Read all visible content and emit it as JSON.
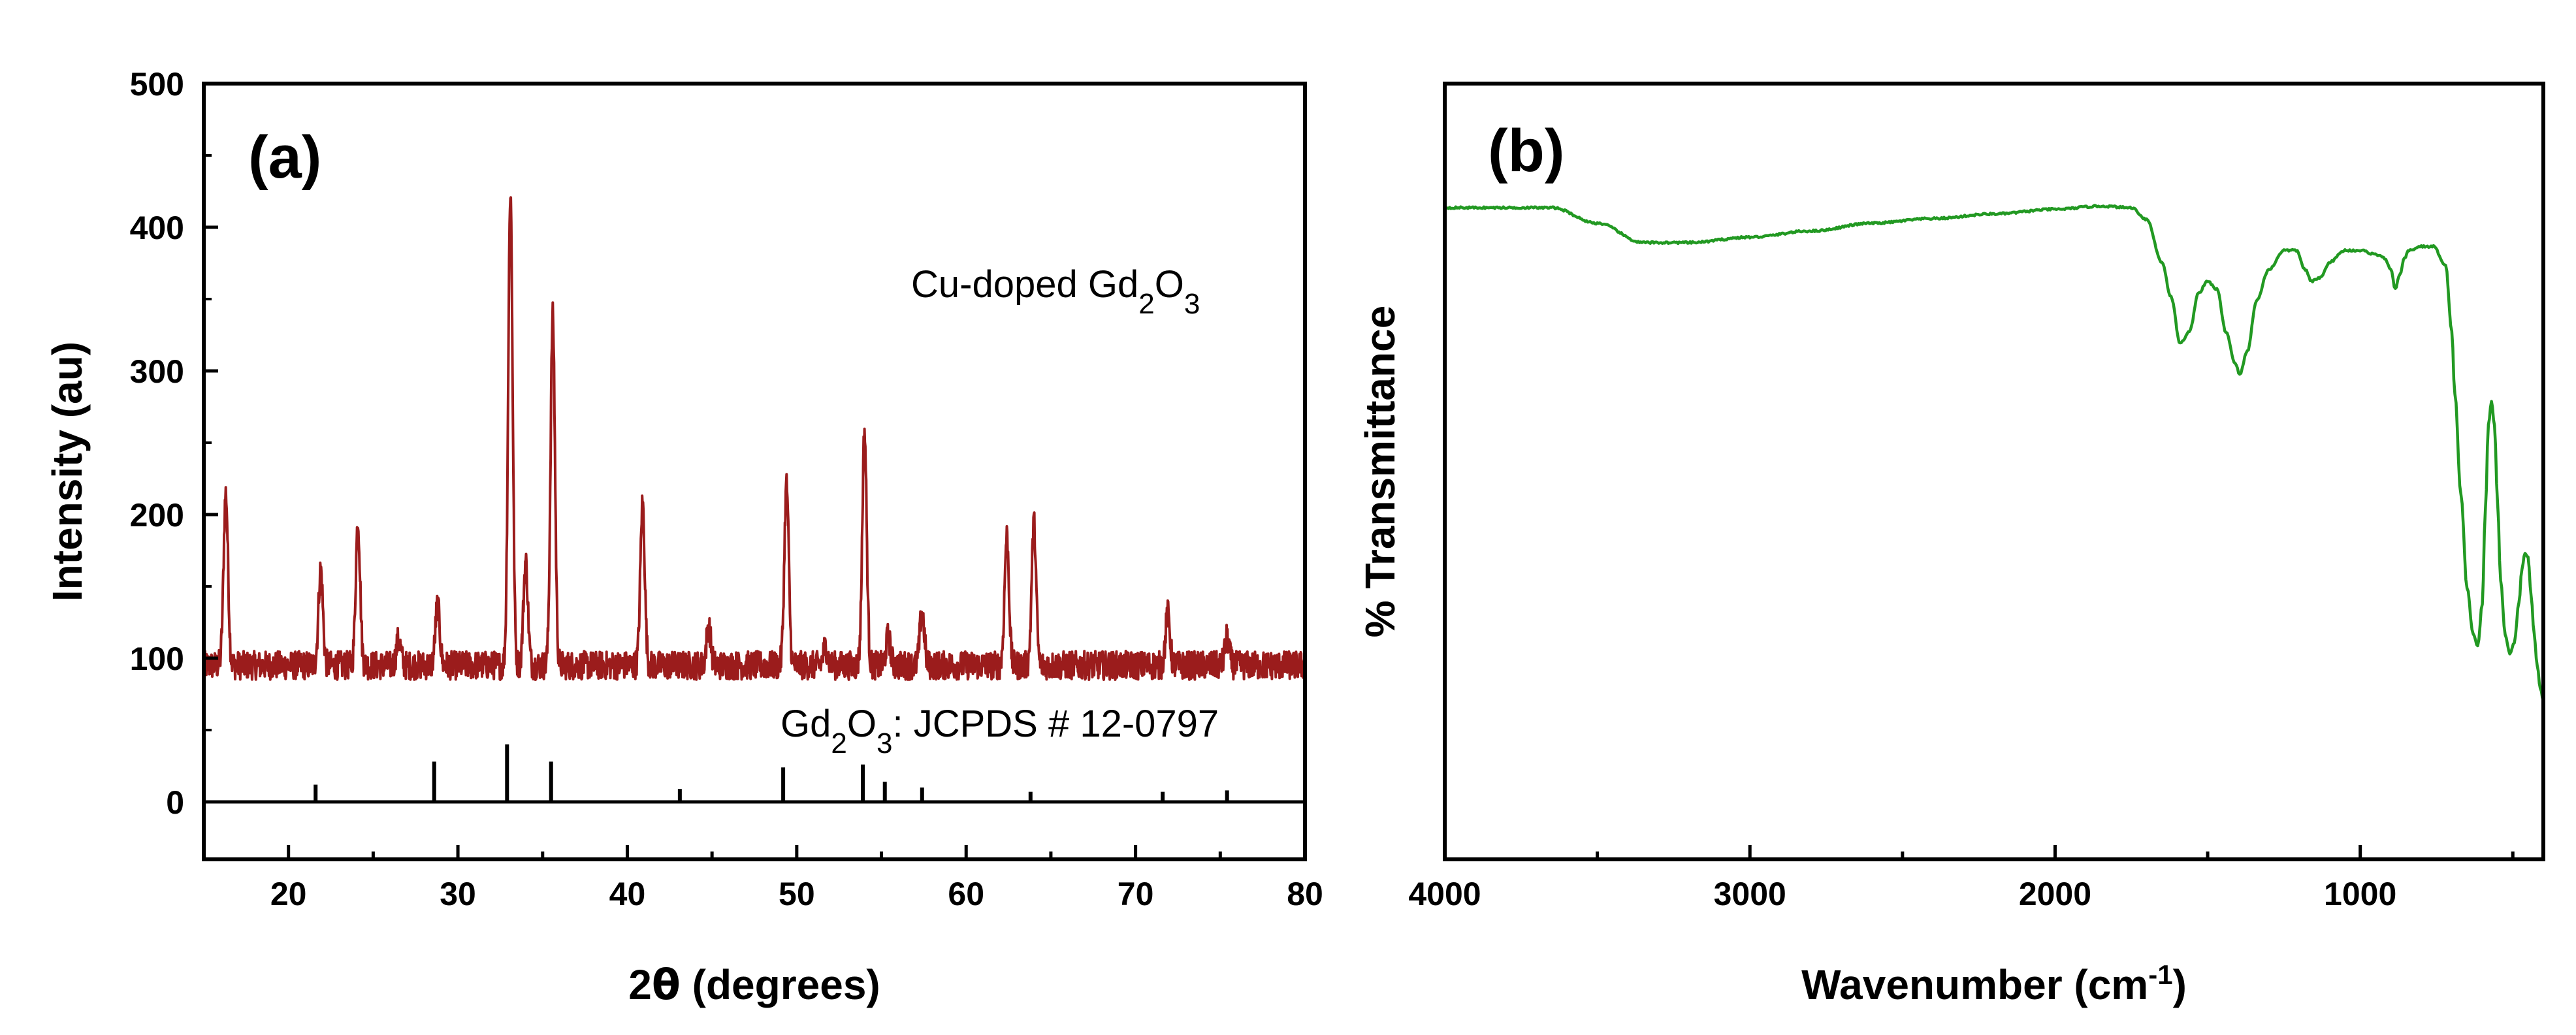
{
  "chart_data": [
    {
      "type": "line",
      "panel_label": "(a)",
      "ylabel": "Intensity (au)",
      "xlabel_prefix": "2",
      "xlabel_theta": "θ",
      "xlabel_suffix": " (degrees)",
      "xlim": [
        15,
        80
      ],
      "ylim": [
        -40,
        500
      ],
      "xticks": [
        20,
        30,
        40,
        50,
        60,
        70,
        80
      ],
      "yticks": [
        0,
        100,
        200,
        300,
        400,
        500
      ],
      "annotation_sample": {
        "pre": "Cu-doped Gd",
        "sub1": "2",
        "mid": "O",
        "sub2": "3",
        "post": ""
      },
      "annotation_ref": {
        "pre": "Gd",
        "sub1": "2",
        "mid": "O",
        "sub2": "3",
        "post": ": JCPDS # 12-0797"
      },
      "color": "#9b1c1c",
      "baseline": 95,
      "peaks": [
        {
          "x": 16.3,
          "y": 215
        },
        {
          "x": 21.9,
          "y": 162
        },
        {
          "x": 24.1,
          "y": 195
        },
        {
          "x": 26.5,
          "y": 113
        },
        {
          "x": 28.8,
          "y": 137
        },
        {
          "x": 33.1,
          "y": 425
        },
        {
          "x": 34.0,
          "y": 167
        },
        {
          "x": 35.6,
          "y": 338
        },
        {
          "x": 40.9,
          "y": 208
        },
        {
          "x": 44.8,
          "y": 122
        },
        {
          "x": 49.4,
          "y": 221
        },
        {
          "x": 51.7,
          "y": 108
        },
        {
          "x": 54.0,
          "y": 258
        },
        {
          "x": 55.4,
          "y": 115
        },
        {
          "x": 57.4,
          "y": 133
        },
        {
          "x": 62.4,
          "y": 185
        },
        {
          "x": 64.0,
          "y": 194
        },
        {
          "x": 71.9,
          "y": 131
        },
        {
          "x": 75.4,
          "y": 114
        }
      ],
      "reference_lines": [
        {
          "x": 21.6,
          "h": 12
        },
        {
          "x": 28.6,
          "h": 28
        },
        {
          "x": 32.9,
          "h": 40
        },
        {
          "x": 35.5,
          "h": 28
        },
        {
          "x": 43.1,
          "h": 9
        },
        {
          "x": 49.2,
          "h": 24
        },
        {
          "x": 53.9,
          "h": 26
        },
        {
          "x": 55.2,
          "h": 14
        },
        {
          "x": 57.4,
          "h": 10
        },
        {
          "x": 63.8,
          "h": 7
        },
        {
          "x": 71.6,
          "h": 7
        },
        {
          "x": 75.4,
          "h": 8
        }
      ]
    },
    {
      "type": "line",
      "panel_label": "(b)",
      "ylabel": "% Transmittance",
      "xlabel": "Wavenumber (cm",
      "xlabel_sup": "-1",
      "xlabel_close": ")",
      "xlim": [
        4000,
        400
      ],
      "ylim": [
        0,
        100
      ],
      "xticks": [
        4000,
        3000,
        2000,
        1000
      ],
      "color": "#229922",
      "x": [
        4000,
        3800,
        3650,
        3500,
        3350,
        3200,
        3000,
        2800,
        2600,
        2400,
        2200,
        2000,
        1850,
        1750,
        1700,
        1650,
        1620,
        1590,
        1560,
        1530,
        1500,
        1470,
        1440,
        1410,
        1395,
        1370,
        1340,
        1300,
        1250,
        1210,
        1180,
        1160,
        1130,
        1100,
        1050,
        1000,
        950,
        920,
        900,
        885,
        870,
        855,
        840,
        800,
        760,
        720,
        700,
        690,
        670,
        650,
        630,
        615,
        600,
        590,
        580,
        570,
        560,
        550,
        540,
        525,
        510,
        495,
        480,
        470,
        460,
        450,
        440,
        430,
        420,
        410,
        400
      ],
      "y": [
        84.0,
        84.0,
        84.0,
        82.0,
        79.5,
        79.5,
        80.2,
        81.0,
        82.0,
        82.6,
        83.2,
        83.8,
        84.2,
        84.0,
        82.5,
        77.0,
        72.5,
        66.5,
        68.0,
        73.0,
        74.5,
        73.5,
        68.0,
        64.0,
        62.5,
        65.5,
        72.0,
        76.0,
        78.5,
        78.5,
        76.0,
        74.5,
        75.0,
        77.0,
        78.5,
        78.5,
        78.0,
        77.5,
        76.0,
        73.5,
        75.5,
        77.5,
        78.5,
        79.0,
        79.0,
        76.5,
        68.0,
        60.0,
        47.0,
        35.0,
        29.0,
        27.5,
        33.0,
        45.0,
        56.0,
        59.0,
        56.0,
        46.0,
        36.0,
        29.0,
        26.5,
        28.0,
        33.0,
        37.5,
        39.5,
        39.0,
        34.0,
        29.0,
        25.0,
        22.0,
        20.5
      ]
    }
  ]
}
